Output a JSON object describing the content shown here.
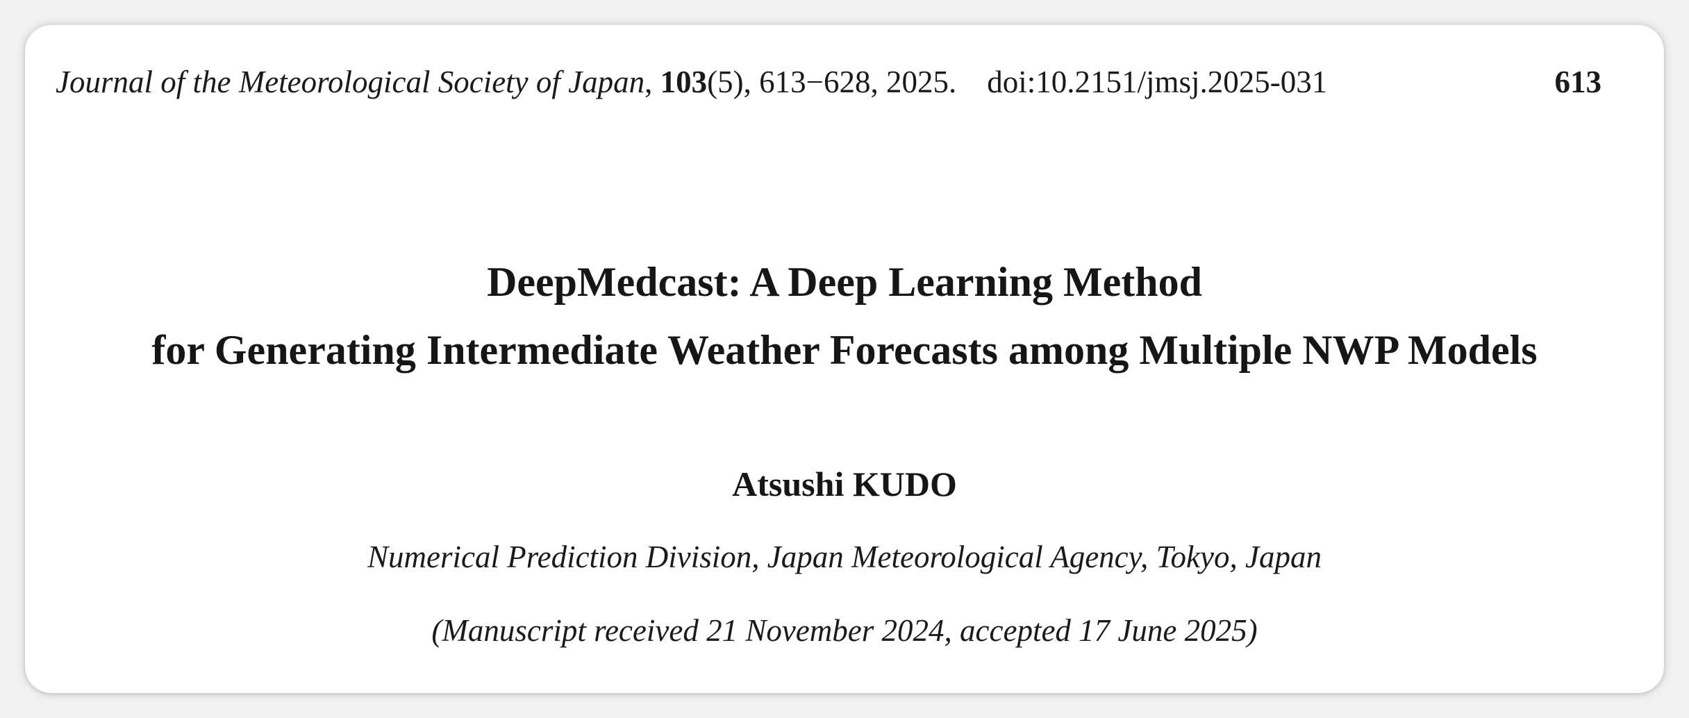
{
  "header": {
    "journal_name": "Journal of the Meteorological Society of Japan",
    "comma": ",",
    "volume": "103",
    "issue_pages_year": "(5), 613−628, 2025.",
    "doi": "doi:10.2151/jmsj.2025-031",
    "page_number": "613"
  },
  "article": {
    "title_line1": "DeepMedcast: A Deep Learning Method",
    "title_line2": "for Generating Intermediate Weather Forecasts among Multiple NWP Models",
    "author": "Atsushi KUDO",
    "affiliation": "Numerical Prediction Division, Japan Meteorological Agency, Tokyo, Japan",
    "manuscript_dates": "(Manuscript received 21 November 2024, accepted 17 June 2025)"
  }
}
